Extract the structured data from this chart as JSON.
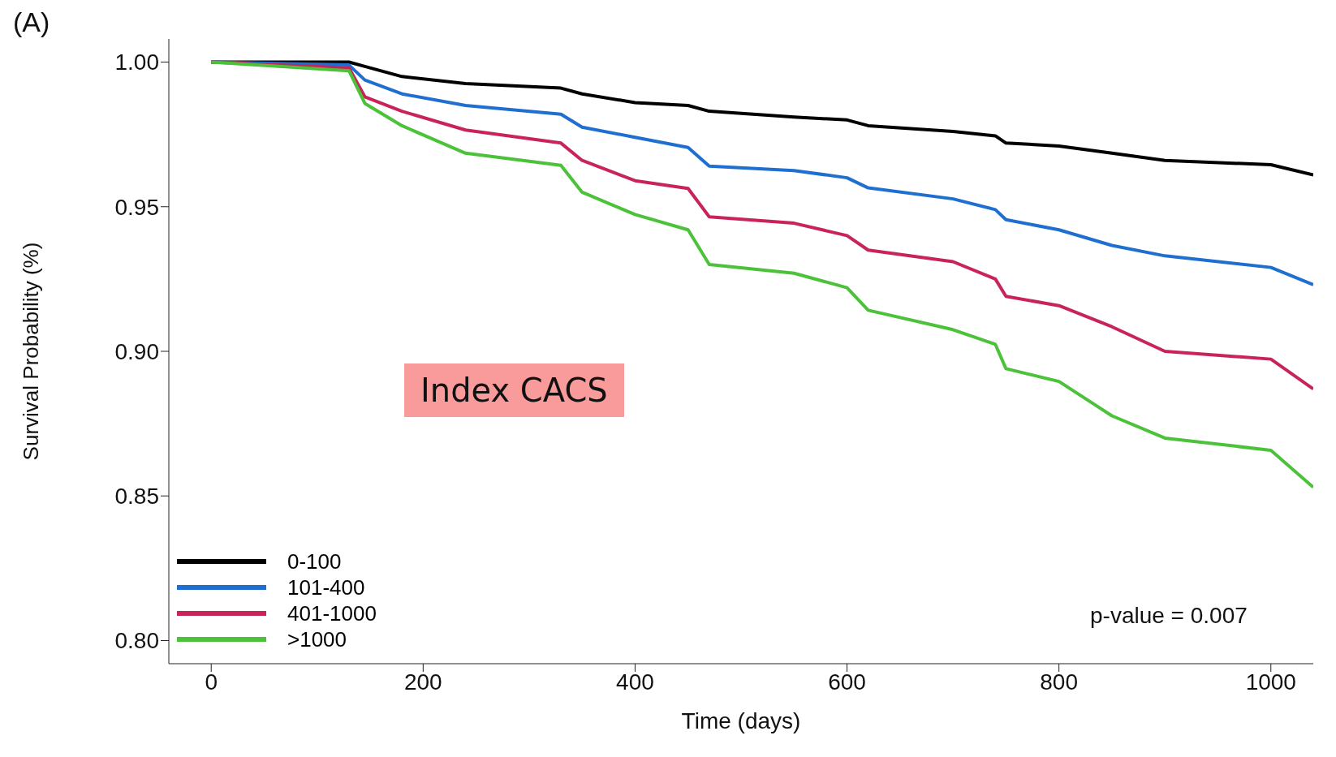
{
  "chart_data": {
    "type": "line",
    "xlabel": "Time (days)",
    "ylabel": "Survival Probability (%)",
    "annotations": [
      "(A)",
      "Index CACS",
      "p-value =  0.007"
    ],
    "xlim": [
      -40,
      1040
    ],
    "xticks": [
      0,
      200,
      400,
      600,
      800,
      1000
    ],
    "ylim": [
      0.792,
      1.008
    ],
    "yticks": [
      {
        "value": 0.8,
        "label": "0.80"
      },
      {
        "value": 0.85,
        "label": "0.85"
      },
      {
        "value": 0.9,
        "label": "0.90"
      },
      {
        "value": 0.95,
        "label": "0.95"
      },
      {
        "value": 1.0,
        "label": "1.00"
      }
    ],
    "grid": false,
    "legend": "bottom left",
    "marker": "none",
    "line_style": "solid",
    "x": [
      0,
      130,
      145,
      180,
      240,
      330,
      350,
      400,
      450,
      470,
      550,
      600,
      620,
      700,
      740,
      750,
      800,
      850,
      900,
      1000,
      1040
    ],
    "series": [
      {
        "name": "0-100",
        "color": "#000000",
        "values": [
          1.0,
          1.0,
          0.9985,
          0.995,
          0.9926,
          0.991,
          0.989,
          0.986,
          0.985,
          0.983,
          0.981,
          0.98,
          0.978,
          0.976,
          0.9745,
          0.972,
          0.971,
          0.9685,
          0.966,
          0.9645,
          0.961
        ]
      },
      {
        "name": "101-400",
        "color": "#1f6fd0",
        "values": [
          1.0,
          0.999,
          0.9938,
          0.989,
          0.985,
          0.982,
          0.9775,
          0.974,
          0.9705,
          0.964,
          0.9625,
          0.96,
          0.9565,
          0.9527,
          0.949,
          0.9455,
          0.942,
          0.9366,
          0.933,
          0.929,
          0.923
        ]
      },
      {
        "name": "401-1000",
        "color": "#c8245a",
        "values": [
          1.0,
          0.998,
          0.988,
          0.983,
          0.9765,
          0.972,
          0.966,
          0.959,
          0.9563,
          0.9465,
          0.9443,
          0.94,
          0.935,
          0.931,
          0.925,
          0.919,
          0.9158,
          0.9085,
          0.9,
          0.8973,
          0.887
        ]
      },
      {
        "name": ">1000",
        "color": "#4cc23a",
        "values": [
          1.0,
          0.997,
          0.9857,
          0.978,
          0.9685,
          0.9643,
          0.955,
          0.9473,
          0.942,
          0.93,
          0.927,
          0.922,
          0.9142,
          0.9075,
          0.9024,
          0.894,
          0.8896,
          0.8777,
          0.87,
          0.8658,
          0.853
        ]
      }
    ]
  }
}
